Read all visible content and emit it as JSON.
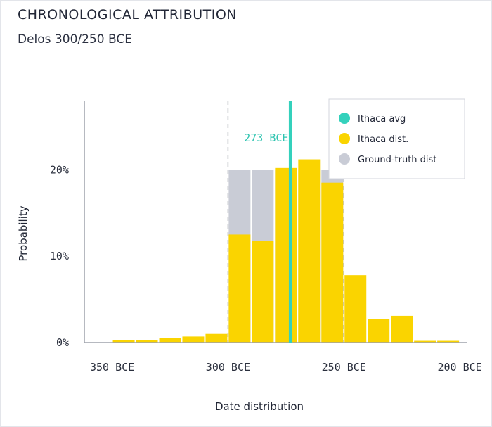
{
  "header": {
    "title": "CHRONOLOGICAL ATTRIBUTION",
    "subtitle": "Delos 300/250 BCE"
  },
  "colors": {
    "ithaca_dist": "#fad400",
    "ground_truth": "#c9ccd6",
    "ithaca_avg": "#34d1bc",
    "axis": "#9ea2ab",
    "dash": "#b5b8bf"
  },
  "chart_data": {
    "type": "bar",
    "title": "CHRONOLOGICAL ATTRIBUTION",
    "subtitle": "Delos 300/250 BCE",
    "xlabel": "Date distribution",
    "ylabel": "Probability",
    "x_unit": "year (negative = BCE)",
    "xlim": [
      -362,
      -197
    ],
    "ylim": [
      0,
      28
    ],
    "bin_width": 10,
    "x_ticks": [
      {
        "value": -350,
        "label": "350 BCE"
      },
      {
        "value": -300,
        "label": "300 BCE"
      },
      {
        "value": -250,
        "label": "250 BCE"
      },
      {
        "value": -200,
        "label": "200 BCE"
      }
    ],
    "y_ticks": [
      {
        "value": 0,
        "label": "0%"
      },
      {
        "value": 10,
        "label": "10%"
      },
      {
        "value": 20,
        "label": "20%"
      }
    ],
    "ground_truth_range": [
      -300,
      -250
    ],
    "ground_truth_value": 20,
    "ithaca_avg": {
      "value": -273,
      "label": "273 BCE"
    },
    "bins_start": [
      -350,
      -340,
      -330,
      -320,
      -310,
      -300,
      -290,
      -280,
      -270,
      -260,
      -250,
      -240,
      -230,
      -220,
      -210
    ],
    "ithaca_dist_values": [
      0.3,
      0.3,
      0.5,
      0.7,
      1.0,
      12.5,
      11.8,
      20.2,
      21.2,
      18.5,
      7.8,
      2.7,
      3.1,
      0.2,
      0.2
    ],
    "legend": {
      "position": "top-right",
      "items": [
        {
          "label": "Ithaca avg",
          "color": "#34d1bc"
        },
        {
          "label": "Ithaca dist.",
          "color": "#fad400"
        },
        {
          "label": "Ground-truth dist",
          "color": "#c9ccd6"
        }
      ]
    }
  }
}
